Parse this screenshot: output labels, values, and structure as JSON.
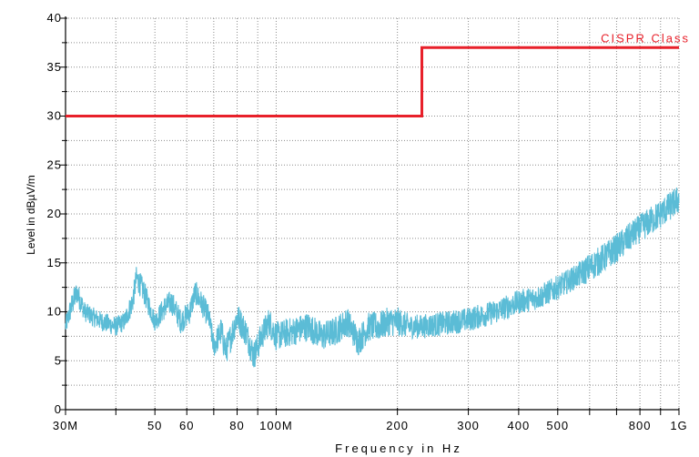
{
  "chart_data": {
    "type": "line",
    "title": "",
    "xlabel": "Frequency in Hz",
    "ylabel": "Level in dBµV/m",
    "x_scale": "log",
    "xlim": [
      30000000,
      1000000000
    ],
    "ylim": [
      0,
      40
    ],
    "grid": true,
    "x_tick_labels": [
      {
        "value": 30000000,
        "label": "30M"
      },
      {
        "value": 50000000,
        "label": "50"
      },
      {
        "value": 60000000,
        "label": "60"
      },
      {
        "value": 80000000,
        "label": "80"
      },
      {
        "value": 100000000,
        "label": "100M"
      },
      {
        "value": 200000000,
        "label": "200"
      },
      {
        "value": 300000000,
        "label": "300"
      },
      {
        "value": 400000000,
        "label": "400"
      },
      {
        "value": 500000000,
        "label": "500"
      },
      {
        "value": 800000000,
        "label": "800"
      },
      {
        "value": 1000000000,
        "label": "1G"
      }
    ],
    "y_ticks": [
      0,
      5,
      10,
      15,
      20,
      25,
      30,
      35,
      40
    ],
    "colors": {
      "limit": "#e8202a",
      "measurement": "#5bbcd6",
      "grid": "#8c8c8c"
    },
    "series": [
      {
        "name": "CISPR Class",
        "kind": "step",
        "x": [
          30000000,
          230000000,
          230000000,
          1000000000
        ],
        "y": [
          30,
          30,
          37,
          37
        ]
      },
      {
        "name": "",
        "kind": "noisy-trace",
        "x": [
          30000000,
          31000000,
          32000000,
          33500000,
          35000000,
          37000000,
          40000000,
          42000000,
          44000000,
          45000000,
          47000000,
          50000000,
          53000000,
          55000000,
          58000000,
          61000000,
          63000000,
          65000000,
          68000000,
          70000000,
          73000000,
          75000000,
          78000000,
          80000000,
          84000000,
          88000000,
          92000000,
          96000000,
          100000000,
          110000000,
          120000000,
          130000000,
          140000000,
          150000000,
          160000000,
          170000000,
          180000000,
          190000000,
          200000000,
          215000000,
          230000000,
          250000000,
          280000000,
          300000000,
          350000000,
          400000000,
          450000000,
          500000000,
          550000000,
          600000000,
          650000000,
          700000000,
          800000000,
          900000000,
          1000000000
        ],
        "y": [
          8.5,
          10.5,
          12,
          10,
          9.5,
          9,
          8.5,
          9,
          11,
          13.5,
          12,
          9,
          10.5,
          11,
          9,
          10,
          12,
          11,
          9.5,
          6.5,
          8,
          6,
          8,
          9.5,
          8,
          5.5,
          7.5,
          9,
          7.5,
          8,
          8.5,
          7.5,
          8,
          9,
          7,
          8.5,
          8.5,
          9,
          9,
          8.5,
          8.5,
          8.7,
          9,
          9.2,
          10,
          11,
          11.5,
          12.5,
          13.5,
          14.5,
          15.5,
          16.5,
          18.5,
          20,
          21.5
        ],
        "spread": [
          2,
          2.5,
          2.5,
          2,
          2,
          2,
          2,
          2,
          2.5,
          2.5,
          2.5,
          2,
          2.5,
          2.5,
          2.5,
          2.5,
          2.5,
          2.5,
          2.5,
          2.5,
          3,
          3,
          3,
          3,
          3,
          3,
          3,
          3,
          3,
          3,
          3,
          3,
          3,
          3,
          3,
          3,
          3,
          3,
          3,
          2.5,
          2.5,
          2.5,
          2.5,
          2.5,
          2.5,
          2.5,
          2.5,
          2.5,
          2.5,
          3,
          3,
          3,
          3,
          3,
          3
        ]
      }
    ],
    "annotations": [
      {
        "text": "CISPR Class",
        "x": 1000000000,
        "y": 37,
        "color": "#e8202a",
        "anchor": "end"
      }
    ]
  }
}
